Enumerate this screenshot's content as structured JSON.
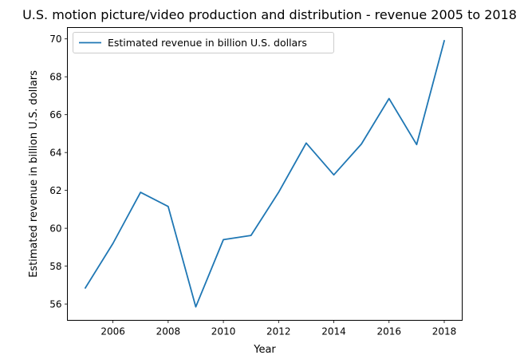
{
  "chart_data": {
    "type": "line",
    "title": "U.S. motion picture/video production and distribution - revenue 2005 to 2018",
    "xlabel": "Year",
    "ylabel": "Estimated revenue in billion U.S. dollars",
    "xlim": [
      2004.35,
      2018.65
    ],
    "ylim": [
      55.14,
      70.6
    ],
    "xticks": [
      "2006",
      "2008",
      "2010",
      "2012",
      "2014",
      "2016",
      "2018"
    ],
    "yticks": [
      "56",
      "58",
      "60",
      "62",
      "64",
      "66",
      "68",
      "70"
    ],
    "grid": false,
    "legend_position": "top-left",
    "color": "#1f77b4",
    "series": [
      {
        "name": "Estimated revenue in billion U.S. dollars",
        "x": [
          2005,
          2006,
          2007,
          2008,
          2009,
          2010,
          2011,
          2012,
          2013,
          2014,
          2015,
          2016,
          2017,
          2018
        ],
        "y": [
          56.85,
          59.2,
          61.9,
          61.15,
          55.85,
          59.4,
          59.62,
          61.9,
          64.5,
          62.82,
          64.45,
          66.85,
          64.42,
          69.9
        ]
      }
    ]
  }
}
